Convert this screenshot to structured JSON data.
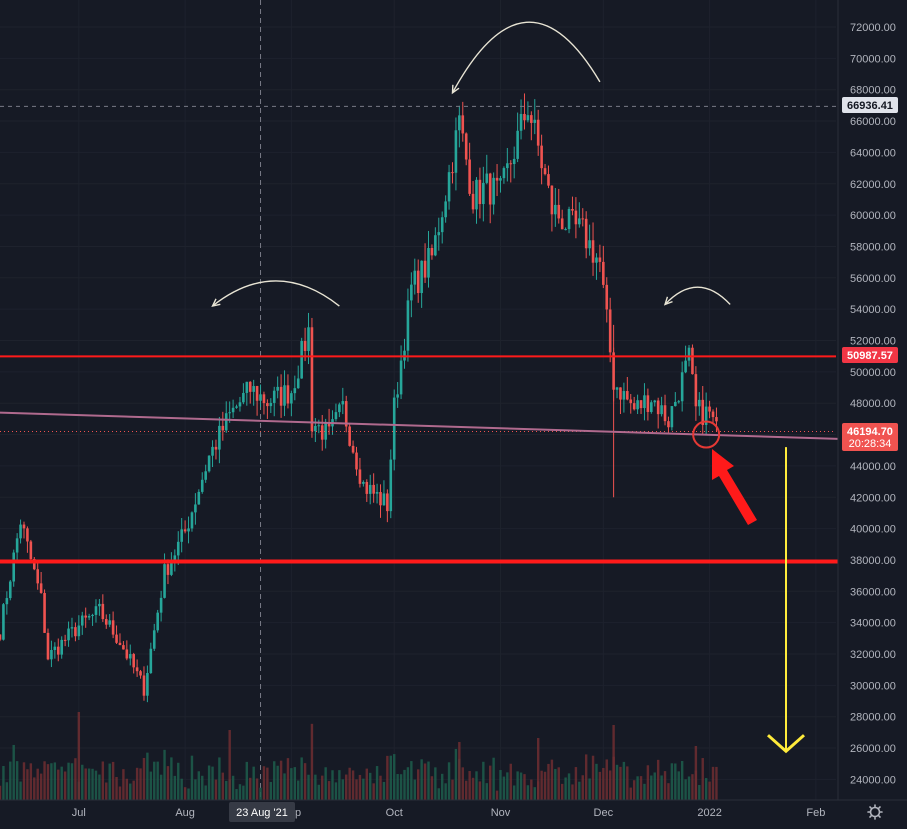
{
  "chart_data": {
    "type": "candlestick",
    "y_axis": {
      "ylim": [
        22500,
        73300
      ],
      "ticks": [
        24000,
        26000,
        28000,
        30000,
        32000,
        34000,
        36000,
        38000,
        40000,
        42000,
        44000,
        46000,
        48000,
        50000,
        52000,
        54000,
        56000,
        58000,
        60000,
        62000,
        64000,
        66000,
        68000,
        70000,
        72000
      ],
      "tick_labels": [
        "24000.00",
        "26000.00",
        "28000.00",
        "30000.00",
        "32000.00",
        "34000.00",
        "36000.00",
        "38000.00",
        "40000.00",
        "42000.00",
        "44000.00",
        "46000.00",
        "48000.00",
        "50000.00",
        "52000.00",
        "54000.00",
        "56000.00",
        "58000.00",
        "60000.00",
        "62000.00",
        "64000.00",
        "66000.00",
        "68000.00",
        "70000.00",
        "72000.00"
      ]
    },
    "x_axis": {
      "labels": [
        {
          "date": "2021-07-01",
          "text": "Jul"
        },
        {
          "date": "2021-08-01",
          "text": "Aug"
        },
        {
          "date": "2021-09-01",
          "text": "Sep"
        },
        {
          "date": "2021-10-01",
          "text": "Oct"
        },
        {
          "date": "2021-11-01",
          "text": "Nov"
        },
        {
          "date": "2021-12-01",
          "text": "Dec"
        },
        {
          "date": "2022-01-01",
          "text": "2022"
        },
        {
          "date": "2022-02-01",
          "text": "Feb"
        }
      ],
      "crosshair_label": "23 Aug '21",
      "crosshair_date": "2021-08-23"
    },
    "ohlc_keypoints": [
      {
        "date": "2021-06-08",
        "close": 33500
      },
      {
        "date": "2021-06-14",
        "close": 40500
      },
      {
        "date": "2021-06-20",
        "close": 35500
      },
      {
        "date": "2021-06-22",
        "close": 31800
      },
      {
        "date": "2021-07-01",
        "close": 33800
      },
      {
        "date": "2021-07-07",
        "close": 34700
      },
      {
        "date": "2021-07-13",
        "close": 32800
      },
      {
        "date": "2021-07-20",
        "close": 29800
      },
      {
        "date": "2021-07-26",
        "close": 37200
      },
      {
        "date": "2021-08-01",
        "close": 39800
      },
      {
        "date": "2021-08-08",
        "close": 44600
      },
      {
        "date": "2021-08-14",
        "close": 47200
      },
      {
        "date": "2021-08-20",
        "close": 48900
      },
      {
        "date": "2021-08-25",
        "close": 48100
      },
      {
        "date": "2021-09-01",
        "close": 48800
      },
      {
        "date": "2021-09-06",
        "close": 52600
      },
      {
        "date": "2021-09-07",
        "close": 46800
      },
      {
        "date": "2021-09-12",
        "close": 45900
      },
      {
        "date": "2021-09-16",
        "close": 47700
      },
      {
        "date": "2021-09-22",
        "close": 42800
      },
      {
        "date": "2021-09-29",
        "close": 41500
      },
      {
        "date": "2021-10-01",
        "close": 47700
      },
      {
        "date": "2021-10-06",
        "close": 55300
      },
      {
        "date": "2021-10-12",
        "close": 57300
      },
      {
        "date": "2021-10-16",
        "close": 61500
      },
      {
        "date": "2021-10-20",
        "close": 65900
      },
      {
        "date": "2021-10-24",
        "close": 61200
      },
      {
        "date": "2021-10-28",
        "close": 61800
      },
      {
        "date": "2021-11-01",
        "close": 61300
      },
      {
        "date": "2021-11-09",
        "close": 67000
      },
      {
        "date": "2021-11-12",
        "close": 64300
      },
      {
        "date": "2021-11-16",
        "close": 60400
      },
      {
        "date": "2021-11-20",
        "close": 59500
      },
      {
        "date": "2021-11-25",
        "close": 58900
      },
      {
        "date": "2021-11-30",
        "close": 56900
      },
      {
        "date": "2021-12-04",
        "close": 49400
      },
      {
        "date": "2021-12-10",
        "close": 47600
      },
      {
        "date": "2021-12-15",
        "close": 48400
      },
      {
        "date": "2021-12-20",
        "close": 46900
      },
      {
        "date": "2021-12-26",
        "close": 50800
      },
      {
        "date": "2021-12-28",
        "close": 47500
      },
      {
        "date": "2022-01-01",
        "close": 47300
      },
      {
        "date": "2022-01-03",
        "close": 46200
      }
    ],
    "price_lines": [
      {
        "value": 66936.41,
        "label": "66936.41",
        "style": "dashed",
        "color": "#787b86",
        "tag_bg": "#e0e3eb"
      },
      {
        "value": 50987.57,
        "label": "50987.57",
        "style": "solid",
        "color": "#ff1a1a",
        "tag_bg": "#f23645"
      },
      {
        "value": 37900,
        "style": "solid-thick",
        "color": "#ff1a1a"
      }
    ],
    "current_price": {
      "value": 46194.7,
      "label": "46194.70",
      "countdown": "20:28:34",
      "color": "#f05350"
    },
    "trendline": {
      "color": "#b06a8e",
      "start": {
        "date": "2021-06-08",
        "value": 47400
      },
      "end": {
        "date": "2022-02-11",
        "value": 45700
      }
    },
    "annotations": [
      {
        "type": "arc",
        "name": "left-shoulder",
        "color": "#e8e4d4",
        "from": {
          "date": "2021-08-09",
          "value": 54200
        },
        "to": {
          "date": "2021-09-15",
          "value": 54200
        },
        "peak_value": 55800
      },
      {
        "type": "arc",
        "name": "head",
        "color": "#e8e4d4",
        "from": {
          "date": "2021-10-18",
          "value": 67800
        },
        "to": {
          "date": "2021-11-30",
          "value": 68500
        },
        "peak_value": 72300
      },
      {
        "type": "arc",
        "name": "right-shoulder",
        "color": "#e8e4d4",
        "from": {
          "date": "2021-12-19",
          "value": 54300
        },
        "to": {
          "date": "2022-01-07",
          "value": 54300
        },
        "peak_value": 55400
      },
      {
        "type": "circle",
        "color": "#e53935",
        "date": "2021-12-31",
        "value": 46000
      },
      {
        "type": "arrow",
        "color": "#ff1a1a",
        "direction": "up-left"
      },
      {
        "type": "arrow",
        "color": "#ffeb3b",
        "direction": "down",
        "from_value": 45200,
        "to_value": 25800
      }
    ],
    "colors": {
      "background": "#161a25",
      "up_candle": "#26a69a",
      "down_candle": "#ef5350",
      "up_volume": "#1d5e4c",
      "down_volume": "#6e2e31",
      "axis_text": "#b2b5be",
      "crosshair": "#787b86"
    }
  }
}
